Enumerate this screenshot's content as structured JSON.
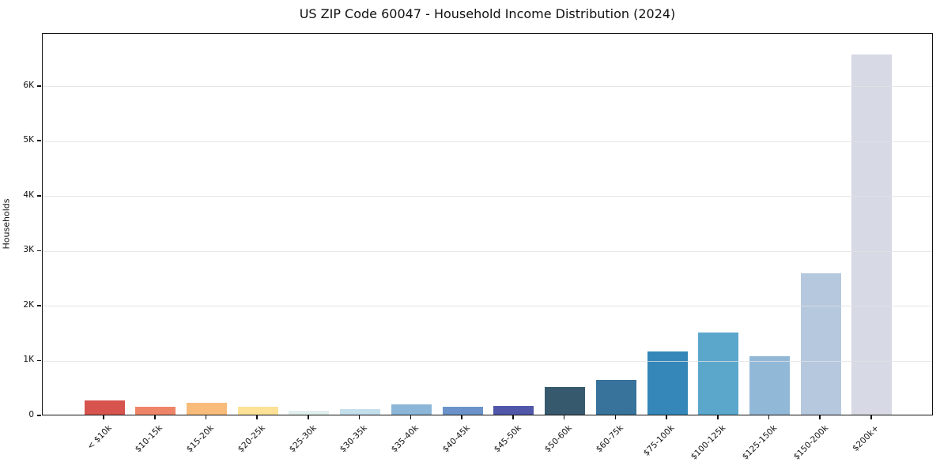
{
  "chart_data": {
    "type": "bar",
    "title": "US ZIP Code 60047 - Household Income Distribution (2024)",
    "xlabel": "",
    "ylabel": "Households",
    "categories": [
      "< $10k",
      "$10-15k",
      "$15-20k",
      "$20-25k",
      "$25-30k",
      "$30-35k",
      "$35-40k",
      "$40-45k",
      "$45-50k",
      "$50-60k",
      "$60-75k",
      "$75-100k",
      "$100-125k",
      "$125-150k",
      "$150-200k",
      "$200k+"
    ],
    "values": [
      260,
      150,
      220,
      140,
      75,
      100,
      190,
      140,
      160,
      500,
      640,
      1150,
      1490,
      1070,
      2570,
      6560
    ],
    "bar_colors": [
      "#d6534e",
      "#ee8468",
      "#f9bb7a",
      "#fce196",
      "#e2f0ef",
      "#c3dfec",
      "#8cb6d8",
      "#6b93c9",
      "#5157a8",
      "#36596e",
      "#38739c",
      "#3487b8",
      "#5ba7cc",
      "#92b8d8",
      "#b6c8de",
      "#d7d9e4"
    ],
    "ytick_labels": [
      "0",
      "1K",
      "2K",
      "3K",
      "4K",
      "5K",
      "6K"
    ],
    "ytick_values": [
      0,
      1000,
      2000,
      3000,
      4000,
      5000,
      6000
    ],
    "ylim": [
      0,
      6960
    ],
    "grid": "horizontal-light-gray",
    "legend": "none",
    "background_color": "#ffffff",
    "axis_color": "#111111",
    "text_color": "#111111"
  }
}
